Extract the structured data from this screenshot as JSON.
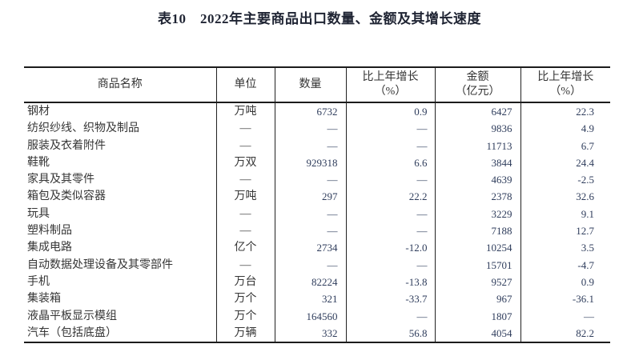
{
  "page": {
    "title": "表10　2022年主要商品出口数量、金额及其增长速度"
  },
  "colors": {
    "border": "#1c1c1c",
    "title_text": "#1f2433",
    "body_text": "#363636",
    "number_text": "#2f3d5c",
    "background": "#ffffff"
  },
  "table": {
    "columns": [
      {
        "label": "商品名称"
      },
      {
        "label": "单位"
      },
      {
        "label": "数量"
      },
      {
        "label": "比上年增长\n（%）"
      },
      {
        "label": "金额\n（亿元）"
      },
      {
        "label": "比上年增长\n（%）"
      }
    ],
    "rows": [
      [
        "钢材",
        "万吨",
        "6732",
        "0.9",
        "6427",
        "22.3"
      ],
      [
        "纺织纱线、织物及制品",
        "—",
        "—",
        "—",
        "9836",
        "4.9"
      ],
      [
        "服装及衣着附件",
        "—",
        "—",
        "—",
        "11713",
        "6.7"
      ],
      [
        "鞋靴",
        "万双",
        "929318",
        "6.6",
        "3844",
        "24.4"
      ],
      [
        "家具及其零件",
        "—",
        "—",
        "—",
        "4639",
        "-2.5"
      ],
      [
        "箱包及类似容器",
        "万吨",
        "297",
        "22.2",
        "2378",
        "32.6"
      ],
      [
        "玩具",
        "—",
        "—",
        "—",
        "3229",
        "9.1"
      ],
      [
        "塑料制品",
        "—",
        "—",
        "—",
        "7188",
        "12.7"
      ],
      [
        "集成电路",
        "亿个",
        "2734",
        "-12.0",
        "10254",
        "3.5"
      ],
      [
        "自动数据处理设备及其零部件",
        "—",
        "—",
        "—",
        "15701",
        "-4.7"
      ],
      [
        "手机",
        "万台",
        "82224",
        "-13.8",
        "9527",
        "0.9"
      ],
      [
        "集装箱",
        "万个",
        "321",
        "-33.7",
        "967",
        "-36.1"
      ],
      [
        "液晶平板显示模组",
        "万个",
        "164560",
        "—",
        "1807",
        "—"
      ],
      [
        "汽车（包括底盘）",
        "万辆",
        "332",
        "56.8",
        "4054",
        "82.2"
      ]
    ]
  }
}
